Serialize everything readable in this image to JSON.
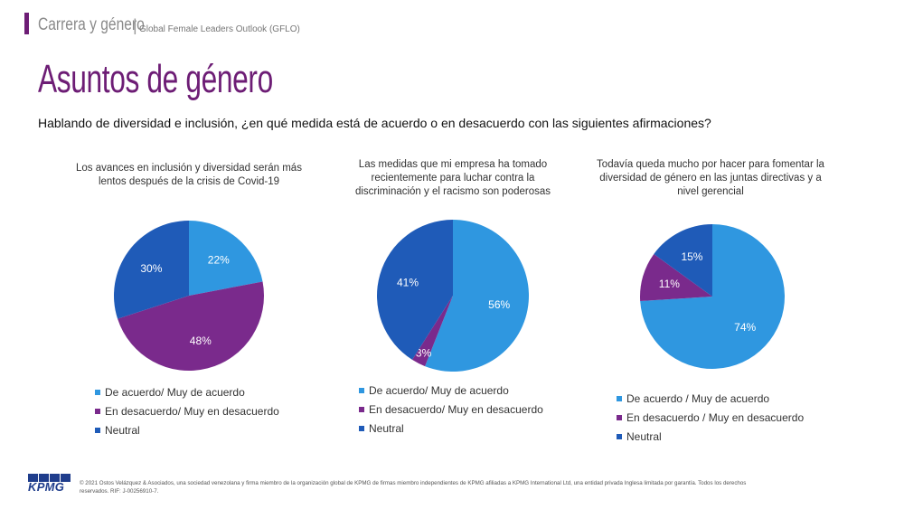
{
  "header": {
    "section": "Carrera y género",
    "separator": "|",
    "subtitle": "Global Female Leaders Outlook (GFLO)",
    "title": "Asuntos de género",
    "question": "Hablando de diversidad e inclusión, ¿en qué medida está de acuerdo o en desacuerdo con las siguientes afirmaciones?"
  },
  "colors": {
    "accent": "#6d1d75",
    "agree": "#2f97e0",
    "disagree": "#7a2a8c",
    "neutral": "#1f5bb8"
  },
  "chart_data": [
    {
      "type": "pie",
      "title": "Los avances en inclusión y diversidad serán más lentos después de la crisis de Covid-19",
      "labels": [
        "De acuerdo/ Muy de acuerdo",
        "En desacuerdo/ Muy en desacuerdo",
        "Neutral"
      ],
      "values": [
        22,
        48,
        30
      ],
      "value_labels": [
        "22%",
        "48%",
        "30%"
      ],
      "colors": [
        "#2f97e0",
        "#7a2a8c",
        "#1f5bb8"
      ],
      "legend_position": "bottom"
    },
    {
      "type": "pie",
      "title": "Las medidas que mi empresa ha tomado recientemente para luchar contra la discriminación y el racismo son poderosas",
      "labels": [
        "De acuerdo/ Muy de acuerdo",
        "En desacuerdo/ Muy en desacuerdo",
        "Neutral"
      ],
      "values": [
        56,
        3,
        41
      ],
      "value_labels": [
        "56%",
        "3%",
        "41%"
      ],
      "colors": [
        "#2f97e0",
        "#7a2a8c",
        "#1f5bb8"
      ],
      "legend_position": "bottom"
    },
    {
      "type": "pie",
      "title": "Todavía queda mucho por hacer para fomentar la diversidad de género en las juntas directivas y a nivel gerencial",
      "labels": [
        "De acuerdo / Muy de acuerdo",
        "En desacuerdo / Muy en desacuerdo",
        "Neutral"
      ],
      "values": [
        74,
        11,
        15
      ],
      "value_labels": [
        "74%",
        "11%",
        "15%"
      ],
      "colors": [
        "#2f97e0",
        "#7a2a8c",
        "#1f5bb8"
      ],
      "legend_position": "bottom"
    }
  ],
  "footer": {
    "logo_text": "KPMG",
    "legal": "© 2021 Ostos Velázquez & Asociados, una sociedad venezolana y firma miembro de la organización global de KPMG de firmas miembro independientes de KPMG afiliadas a KPMG International Ltd, una entidad privada Inglesa limitada por garantía. Todos los derechos reservados. RIF: J-00256910-7."
  }
}
